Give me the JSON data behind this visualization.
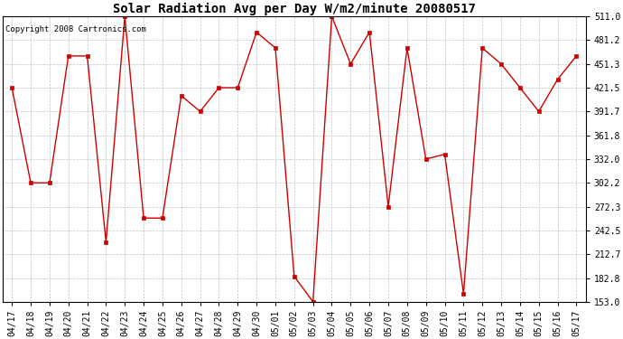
{
  "title": "Solar Radiation Avg per Day W/m2/minute 20080517",
  "copyright": "Copyright 2008 Cartronics.com",
  "labels": [
    "04/17",
    "04/18",
    "04/19",
    "04/20",
    "04/21",
    "04/22",
    "04/23",
    "04/24",
    "04/25",
    "04/26",
    "04/27",
    "04/28",
    "04/29",
    "04/30",
    "05/01",
    "05/02",
    "05/03",
    "05/04",
    "05/05",
    "05/06",
    "05/07",
    "05/08",
    "05/09",
    "05/10",
    "05/11",
    "05/12",
    "05/13",
    "05/14",
    "05/15",
    "05/16",
    "05/17"
  ],
  "values": [
    421.5,
    302.2,
    302.2,
    461.3,
    461.3,
    228.0,
    511.0,
    258.0,
    258.0,
    411.5,
    391.7,
    421.5,
    421.5,
    491.2,
    471.3,
    185.0,
    153.0,
    511.0,
    451.3,
    491.2,
    272.3,
    471.3,
    332.0,
    338.0,
    163.0,
    471.3,
    451.3,
    421.5,
    391.7,
    432.0,
    461.3
  ],
  "yticks": [
    153.0,
    182.8,
    212.7,
    242.5,
    272.3,
    302.2,
    332.0,
    361.8,
    391.7,
    421.5,
    451.3,
    481.2,
    511.0
  ],
  "ymin": 153.0,
  "ymax": 511.0,
  "line_color": "#cc0000",
  "marker": "s",
  "marker_size": 2.5,
  "background_color": "#ffffff",
  "grid_color": "#aaaaaa",
  "title_fontsize": 10,
  "copyright_fontsize": 6.5,
  "tick_fontsize": 7
}
